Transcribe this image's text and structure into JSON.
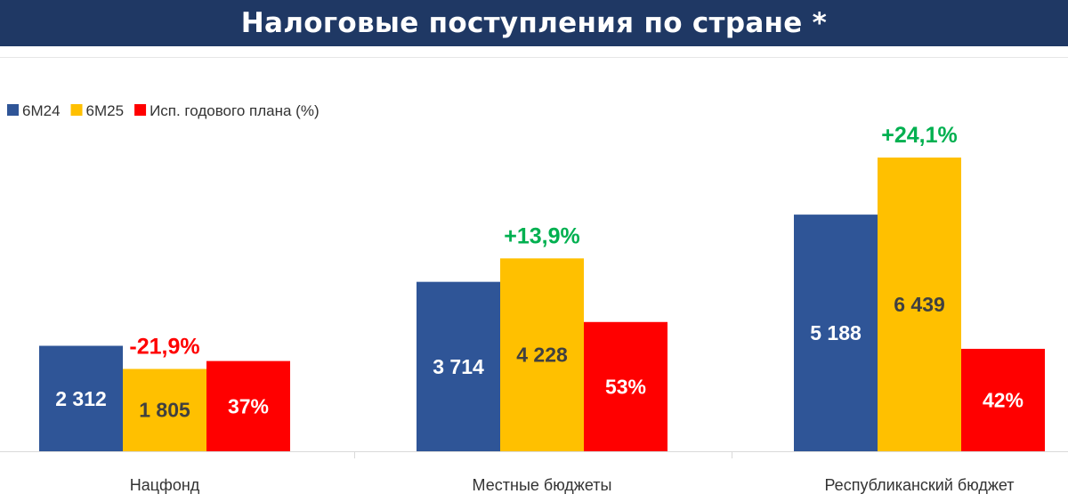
{
  "title": "Налоговые поступления по стране *",
  "chart_data": {
    "type": "bar",
    "title": "Налоговые поступления по стране *",
    "categories": [
      "Нацфонд",
      "Местные бюджеты",
      "Республиканский бюджет"
    ],
    "series": [
      {
        "name": "6М24",
        "color": "#2f5597",
        "values": [
          2312,
          3714,
          5188
        ],
        "labels": [
          "2 312",
          "3 714",
          "5 188"
        ]
      },
      {
        "name": "6М25",
        "color": "#ffc000",
        "values": [
          1805,
          4228,
          6439
        ],
        "labels": [
          "1 805",
          "4 228",
          "6 439"
        ]
      },
      {
        "name": "Исп. годового плана (%)",
        "color": "#ff0000",
        "values": [
          37,
          53,
          42
        ],
        "labels": [
          "37%",
          "53%",
          "42%"
        ]
      }
    ],
    "changes": [
      {
        "label": "-21,9%",
        "color": "#ff0000"
      },
      {
        "label": "+13,9%",
        "color": "#00b050"
      },
      {
        "label": "+24,1%",
        "color": "#00b050"
      }
    ],
    "legend_position": "top-left",
    "grid": false
  }
}
